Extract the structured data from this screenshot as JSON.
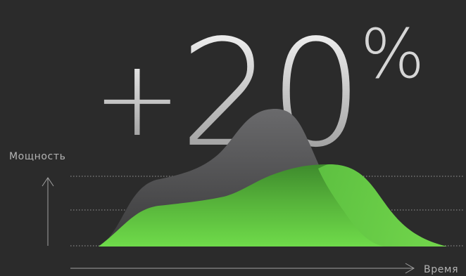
{
  "headline": {
    "sign": "+",
    "number": "20",
    "unit": "%"
  },
  "chart_data": {
    "type": "area",
    "title": "",
    "ylabel": "Мощность",
    "xlabel": "Время",
    "grid": true,
    "legend": "none",
    "series": [
      {
        "color": "#5c5c5e"
      },
      {
        "color": "#6bd24a"
      }
    ]
  }
}
